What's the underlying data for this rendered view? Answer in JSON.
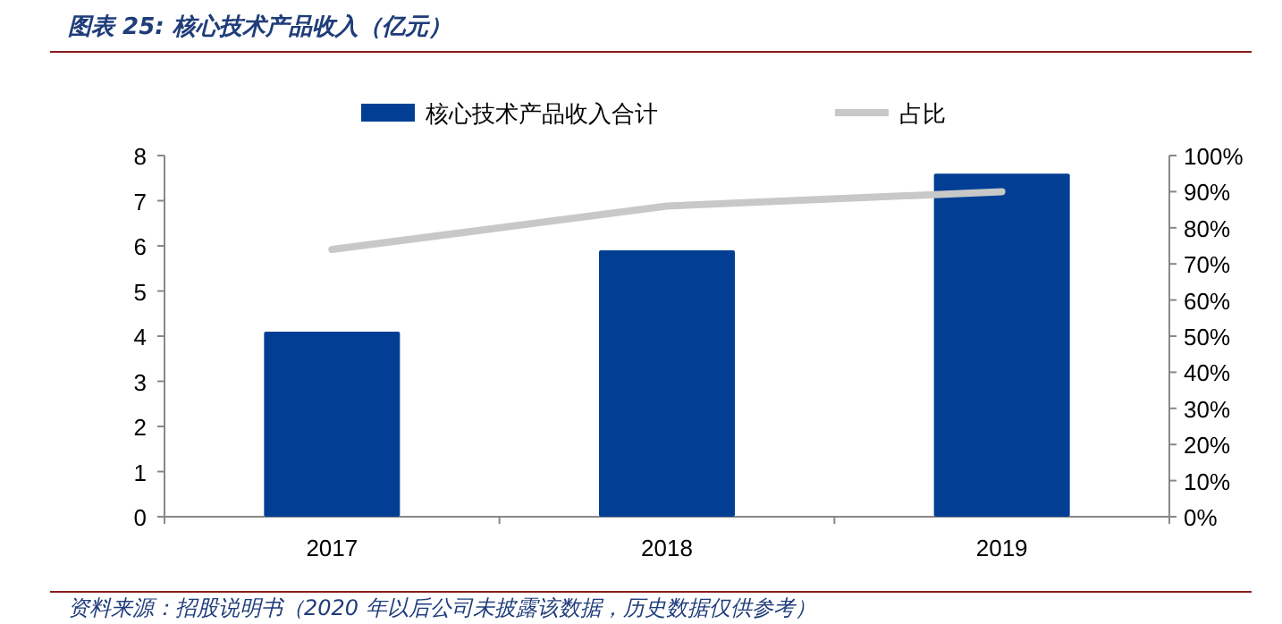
{
  "chart_data": {
    "type": "bar",
    "title": "图表 25: 核心技术产品收入（亿元）",
    "categories": [
      "2017",
      "2018",
      "2019"
    ],
    "series": [
      {
        "name": "核心技术产品收入合计",
        "color": "#023f94",
        "values": [
          4.1,
          5.9,
          7.6
        ]
      },
      {
        "name": "占比",
        "type": "line",
        "axis": "y2",
        "color": "#c8c8c8",
        "values": [
          74,
          86,
          90
        ]
      }
    ],
    "ylim": [
      0,
      8
    ],
    "yticks": [
      0,
      1,
      2,
      3,
      4,
      5,
      6,
      7,
      8
    ],
    "y2lim": [
      0,
      100
    ],
    "y2ticks": [
      {
        "value": 0,
        "label": "0%"
      },
      {
        "value": 10,
        "label": "10%"
      },
      {
        "value": 20,
        "label": "20%"
      },
      {
        "value": 30,
        "label": "30%"
      },
      {
        "value": 40,
        "label": "40%"
      },
      {
        "value": 50,
        "label": "50%"
      },
      {
        "value": 60,
        "label": "60%"
      },
      {
        "value": 70,
        "label": "70%"
      },
      {
        "value": 80,
        "label": "80%"
      },
      {
        "value": 90,
        "label": "90%"
      },
      {
        "value": 100,
        "label": "100%"
      }
    ],
    "legend": "top",
    "grid": false,
    "annotations": [
      "资料来源：招股说明书（2020 年以后公司未披露该数据，历史数据仅供参考）"
    ]
  }
}
